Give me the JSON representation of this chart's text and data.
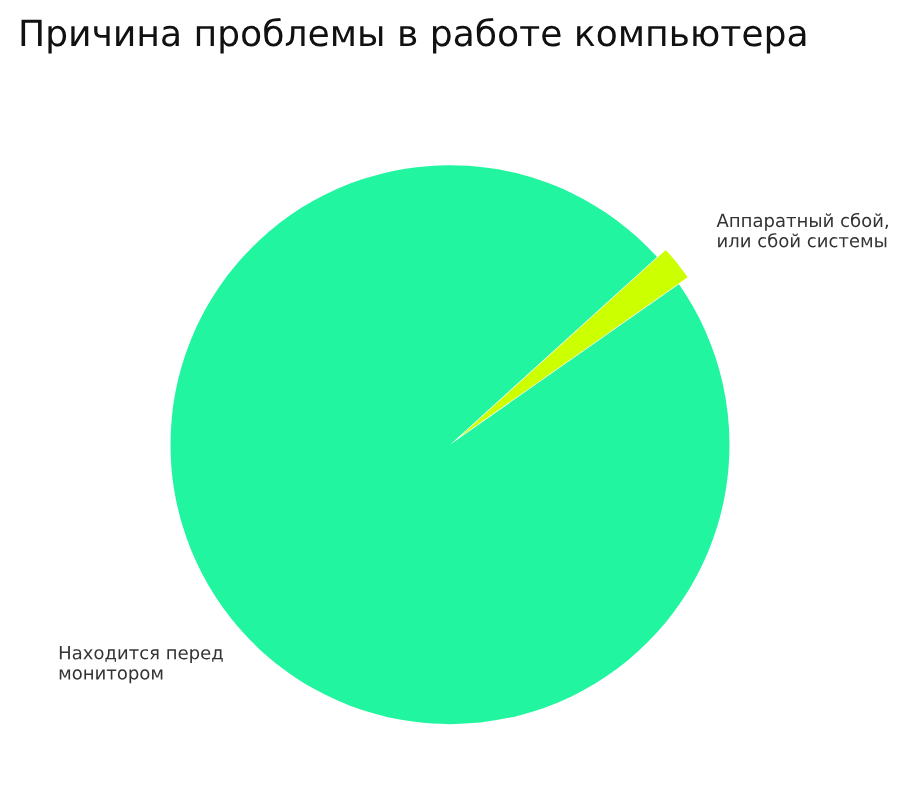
{
  "chart_data": {
    "type": "pie",
    "title": "Причина проблемы в работе компьютера",
    "categories": [
      "Аппаратный сбой,\nили сбой системы",
      "Находится перед\nмонитором"
    ],
    "values": [
      2,
      98
    ],
    "colors": [
      "#ccff00",
      "#22f5a0"
    ],
    "legend": false
  }
}
